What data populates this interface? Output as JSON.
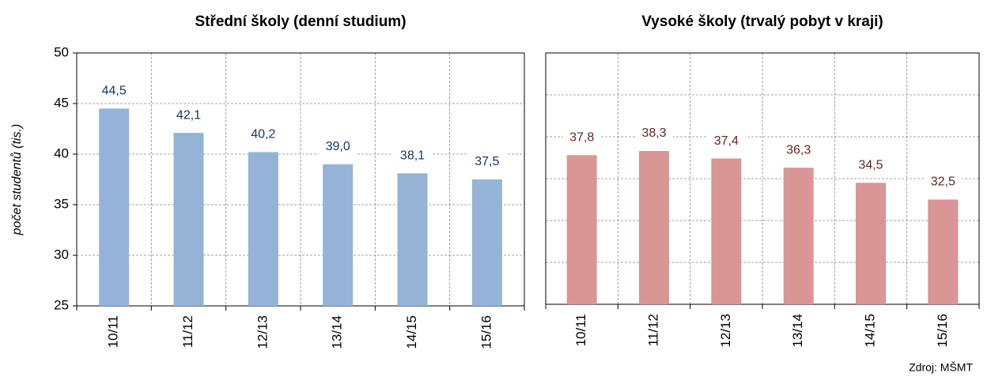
{
  "chart_data": [
    {
      "type": "bar",
      "title": "Střední školy (denní studium)",
      "y_label": "počet studentů (tis.)",
      "categories": [
        "10/11",
        "11/12",
        "12/13",
        "13/14",
        "14/15",
        "15/16"
      ],
      "values": [
        44.5,
        42.1,
        40.2,
        39.0,
        38.1,
        37.5
      ],
      "value_labels": [
        "44,5",
        "42,1",
        "40,2",
        "39,0",
        "38,1",
        "37,5"
      ],
      "color": "#95b3d7",
      "label_color": "#17375e",
      "ylim": [
        25,
        50
      ],
      "yticks": [
        25,
        30,
        35,
        40,
        45,
        50
      ],
      "grid": true
    },
    {
      "type": "bar",
      "title": "Vysoké školy (trvalý pobyt v kraji)",
      "categories": [
        "10/11",
        "11/12",
        "12/13",
        "13/14",
        "14/15",
        "15/16"
      ],
      "values": [
        37.8,
        38.3,
        37.4,
        36.3,
        34.5,
        32.5
      ],
      "value_labels": [
        "37,8",
        "38,3",
        "37,4",
        "36,3",
        "34,5",
        "32,5"
      ],
      "color": "#d99694",
      "label_color": "#632523",
      "ylim": [
        20,
        50
      ],
      "yticks": [
        20,
        25,
        30,
        35,
        40,
        45,
        50
      ],
      "grid": true
    }
  ],
  "source": "Zdroj: MŠMT"
}
